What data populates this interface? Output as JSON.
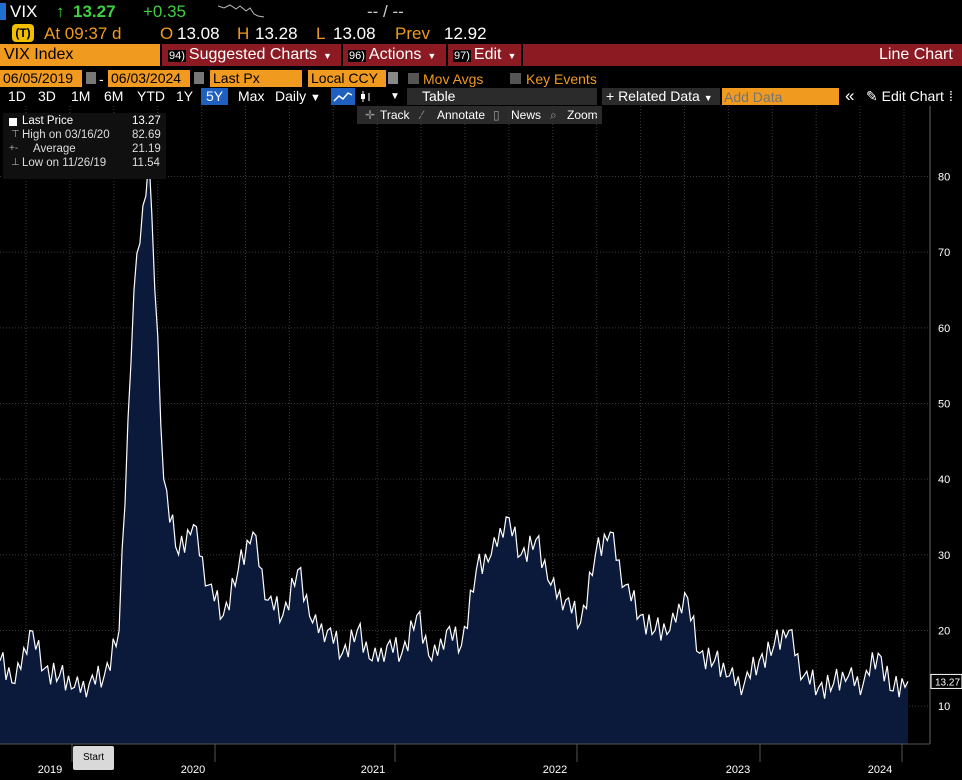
{
  "ticker": {
    "symbol": "VIX",
    "arrow": "↑",
    "price": "13.27",
    "change": "+0.35",
    "bid_ask": "-- / --"
  },
  "quote": {
    "logo": "(T)",
    "time": "At 09:37 d",
    "open_label": "O",
    "open": "13.08",
    "high_label": "H",
    "high": "13.28",
    "low_label": "L",
    "low": "13.08",
    "prev_label": "Prev",
    "prev": "12.92"
  },
  "menubar": {
    "security": "VIX Index",
    "items": [
      {
        "num": "94)",
        "label": "Suggested Charts"
      },
      {
        "num": "96)",
        "label": "Actions"
      },
      {
        "num": "97)",
        "label": "Edit"
      }
    ],
    "chart_type": "Line Chart"
  },
  "settings": {
    "start_date": "06/05/2019",
    "dash": "-",
    "end_date": "06/03/2024",
    "field": "Last Px",
    "currency": "Local CCY",
    "mov_avgs": "Mov Avgs",
    "key_events": "Key Events"
  },
  "toolbar": {
    "ranges": [
      "1D",
      "3D",
      "1M",
      "6M",
      "YTD",
      "1Y",
      "5Y",
      "Max"
    ],
    "selected_range": "5Y",
    "frequency": "Daily",
    "table": "Table",
    "related": "+ Related Data",
    "add_data_placeholder": "Add Data",
    "collapse": "«",
    "edit_chart": "Edit Chart"
  },
  "subtoolbar": {
    "track": "Track",
    "annotate": "Annotate",
    "news": "News",
    "zoom": "Zoom"
  },
  "legend": {
    "rows": [
      {
        "label": "Last Price",
        "value": "13.27"
      },
      {
        "label": "High on 03/16/20",
        "value": "82.69"
      },
      {
        "label": "Average",
        "value": "21.19"
      },
      {
        "label": "Low on 11/26/19",
        "value": "11.54"
      }
    ]
  },
  "start_button": "Start",
  "colors": {
    "accent": "#f09a1f",
    "menu": "#8b1a22",
    "area_fill": "#0b1a3a",
    "line": "#ffffff",
    "up": "#3fd03f"
  },
  "chart_data": {
    "type": "area",
    "series": [
      {
        "name": "Last Price"
      }
    ],
    "x": [
      "2019-06",
      "2019-07",
      "2019-08",
      "2019-09",
      "2019-10",
      "2019-11",
      "2019-12",
      "2020-01",
      "2020-02",
      "2020-03",
      "2020-03b",
      "2020-04",
      "2020-05",
      "2020-06",
      "2020-07",
      "2020-08",
      "2020-09",
      "2020-10",
      "2020-11",
      "2020-12",
      "2021-01",
      "2021-02",
      "2021-03",
      "2021-04",
      "2021-05",
      "2021-06",
      "2021-07",
      "2021-08",
      "2021-09",
      "2021-10",
      "2021-11",
      "2021-12",
      "2022-01",
      "2022-02",
      "2022-03",
      "2022-04",
      "2022-05",
      "2022-06",
      "2022-07",
      "2022-08",
      "2022-09",
      "2022-10",
      "2022-11",
      "2022-12",
      "2023-01",
      "2023-02",
      "2023-03",
      "2023-04",
      "2023-05",
      "2023-06",
      "2023-07",
      "2023-08",
      "2023-09",
      "2023-10",
      "2023-11",
      "2023-12",
      "2024-01",
      "2024-02",
      "2024-03",
      "2024-04",
      "2024-05",
      "2024-06"
    ],
    "values": [
      16,
      13,
      20,
      15,
      14,
      12.5,
      13,
      14,
      20,
      65,
      82.69,
      40,
      30,
      34,
      26,
      22,
      28,
      33,
      24,
      22,
      28,
      21,
      20,
      17,
      20,
      16,
      18,
      17,
      22,
      16,
      20,
      18,
      28,
      30,
      35,
      30,
      32,
      26,
      24,
      21,
      30,
      33,
      26,
      22,
      20,
      20,
      25,
      17,
      16,
      14,
      13,
      16,
      18,
      20,
      14,
      12.5,
      13,
      14,
      13,
      17,
      12,
      13.27
    ],
    "x_ticks": [
      "2019",
      "2020",
      "2021",
      "2022",
      "2023",
      "2024"
    ],
    "y_ticks": [
      10,
      20,
      30,
      40,
      50,
      60,
      70,
      80
    ],
    "ylim": [
      5,
      88
    ],
    "last_label": "13.27",
    "grid": true
  }
}
